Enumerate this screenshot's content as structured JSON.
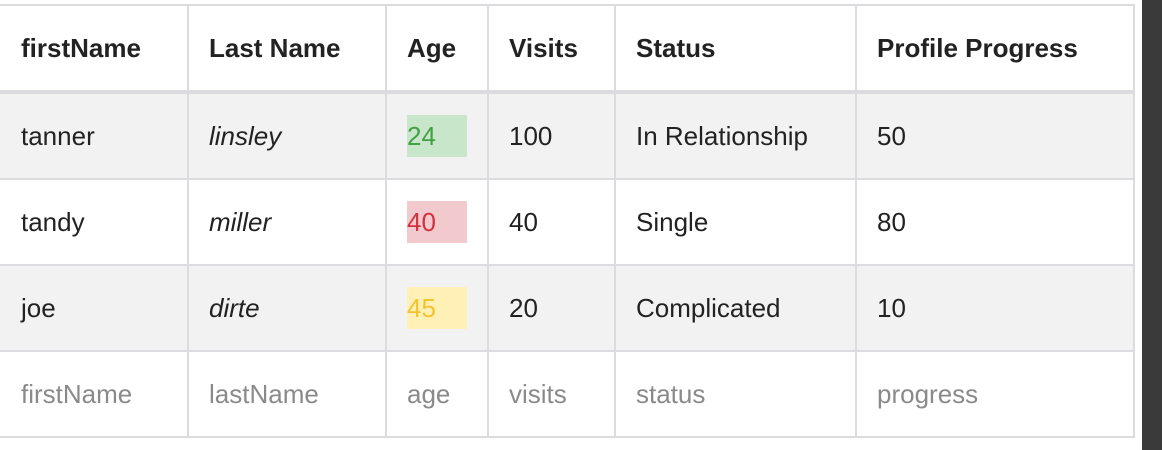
{
  "table": {
    "headers": [
      "firstName",
      "Last Name",
      "Age",
      "Visits",
      "Status",
      "Profile Progress"
    ],
    "rows": [
      [
        "tanner",
        "linsley",
        24,
        100,
        "In Relationship",
        50
      ],
      [
        "tandy",
        "miller",
        40,
        40,
        "Single",
        80
      ],
      [
        "joe",
        "dirte",
        45,
        20,
        "Complicated",
        10
      ]
    ],
    "filters": [
      "firstName",
      "lastName",
      "age",
      "visits",
      "status",
      "progress"
    ]
  }
}
